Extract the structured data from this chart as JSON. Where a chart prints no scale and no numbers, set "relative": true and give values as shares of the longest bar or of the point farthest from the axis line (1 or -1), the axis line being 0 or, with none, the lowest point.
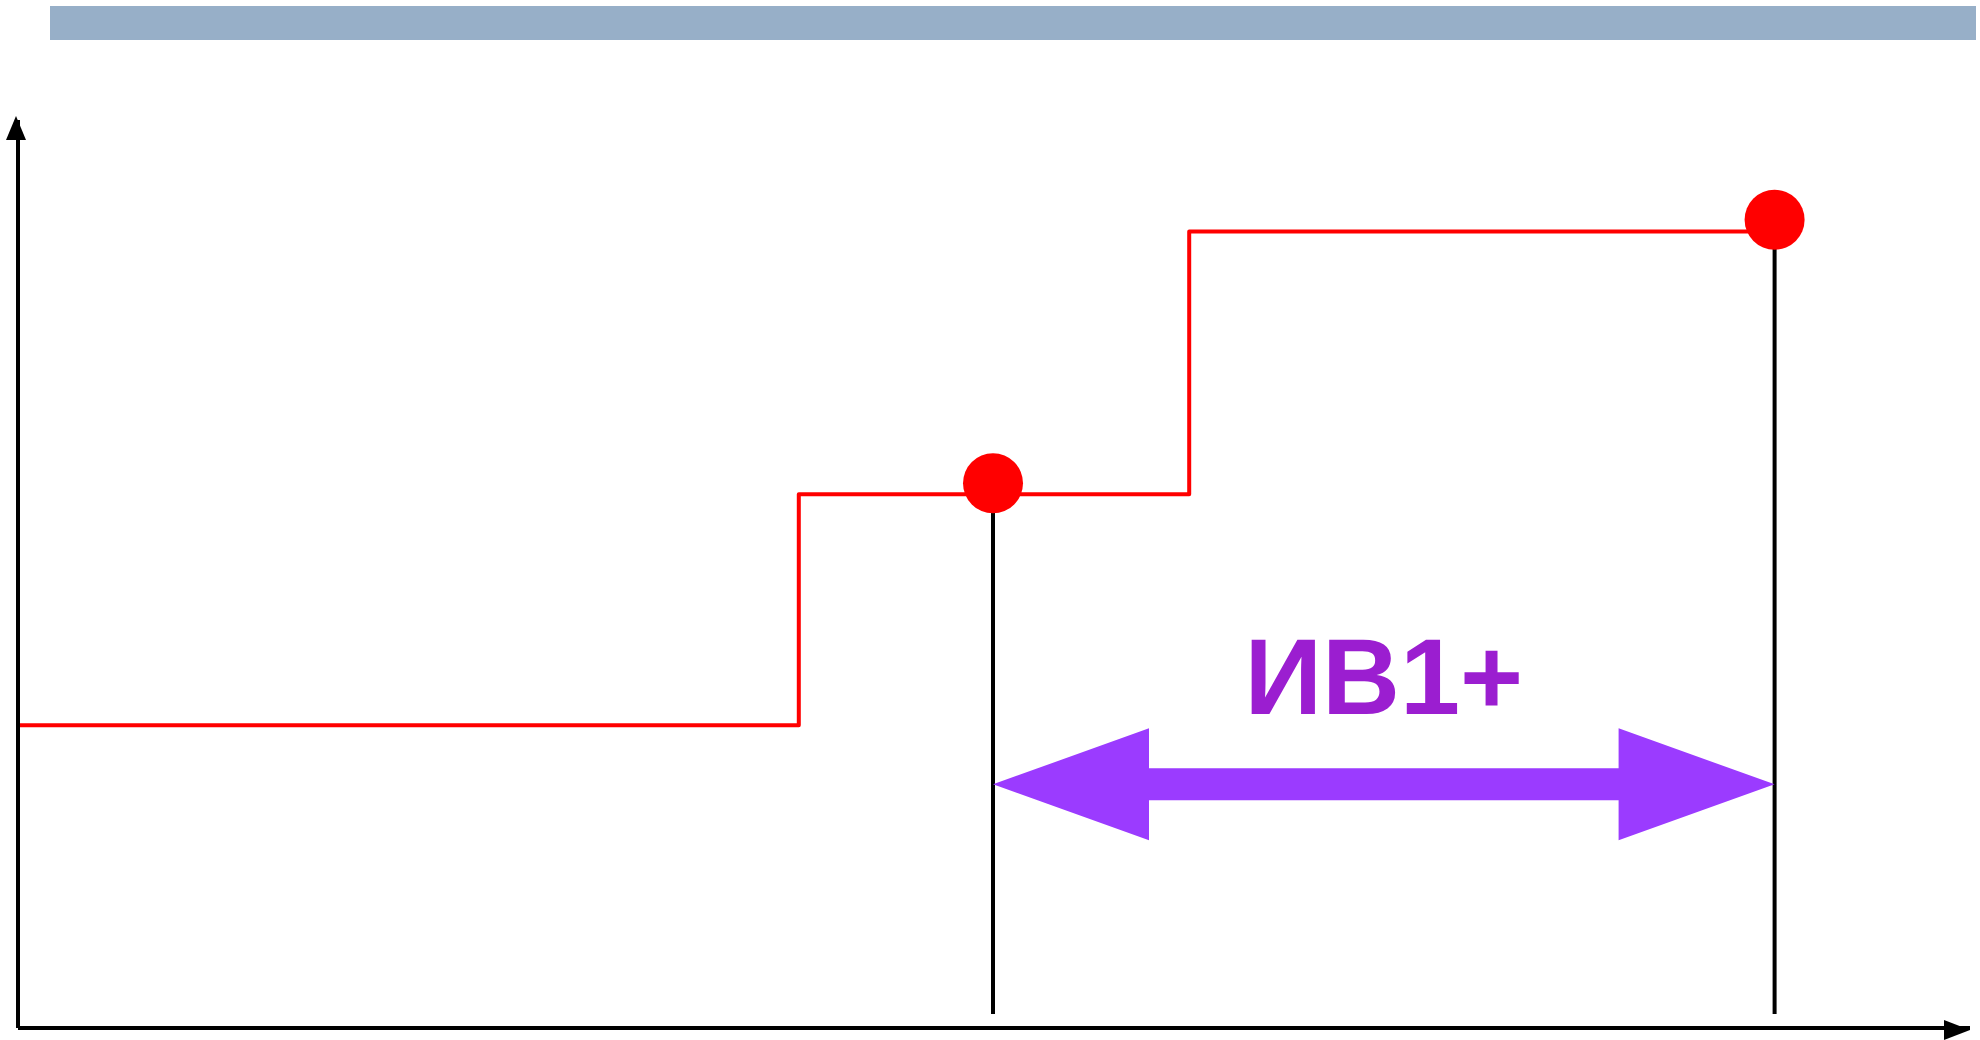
{
  "chart_data": {
    "type": "step",
    "relative": true,
    "categories": [
      null,
      null,
      null,
      null,
      null,
      null,
      null,
      null,
      null,
      null
    ],
    "series": [
      {
        "type": "step",
        "color": "#ff0000",
        "marker": "none",
        "values": [
          0.38,
          0.38,
          0.38,
          0.38,
          0.67,
          0.67,
          1.0,
          1.0,
          1.0,
          1.0
        ]
      }
    ],
    "annotations": [
      "ИВ1+"
    ]
  }
}
